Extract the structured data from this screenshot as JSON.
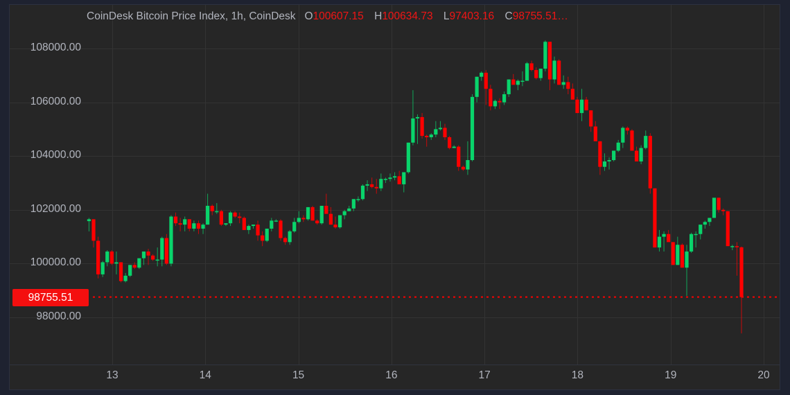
{
  "legend": {
    "title": "CoinDesk Bitcoin Price Index, 1h, CoinDesk",
    "open_key": "O",
    "open": "100607.15",
    "high_key": "H",
    "high": "100634.73",
    "low_key": "L",
    "low": "97403.16",
    "close_key": "C",
    "close": "98755.51…"
  },
  "last_price_tag": "98755.51",
  "colors": {
    "up": "#09d46b",
    "down": "#fe0000",
    "grid": "#333333",
    "text": "#b2b5be",
    "bg": "#262626",
    "outer": "#1e2230"
  },
  "chart_data": {
    "type": "candlestick",
    "title": "CoinDesk Bitcoin Price Index, 1h, CoinDesk",
    "interval": "1h",
    "xlabel": "",
    "ylabel": "",
    "y_ticks": [
      98000,
      100000,
      102000,
      104000,
      106000,
      108000
    ],
    "y_tick_labels": [
      "98000.00",
      "100000.00",
      "102000.00",
      "104000.00",
      "106000.00",
      "108000.00"
    ],
    "x_ticks": [
      "13",
      "14",
      "15",
      "16",
      "17",
      "18",
      "19",
      "20"
    ],
    "ylim": [
      96500,
      108700
    ],
    "grid": true,
    "last_close": 98755.51,
    "last_ohlc": {
      "open": 100607.15,
      "high": 100634.73,
      "low": 97403.16,
      "close": 98755.51
    },
    "start_day_offset": -0.25,
    "candles_ohlc": [
      [
        101580,
        101700,
        101200,
        101650
      ],
      [
        101650,
        101650,
        100600,
        100850
      ],
      [
        100850,
        101000,
        99450,
        99600
      ],
      [
        99600,
        100100,
        99500,
        100050
      ],
      [
        100050,
        100500,
        99900,
        100450
      ],
      [
        100450,
        100500,
        99950,
        100000
      ],
      [
        100000,
        100450,
        99600,
        100050
      ],
      [
        100050,
        100050,
        99300,
        99350
      ],
      [
        99350,
        99650,
        99300,
        99550
      ],
      [
        99550,
        99950,
        99500,
        99950
      ],
      [
        99950,
        100050,
        99800,
        99850
      ],
      [
        99850,
        100150,
        99800,
        100200
      ],
      [
        100200,
        100450,
        99950,
        100450
      ],
      [
        100450,
        100550,
        99950,
        100300
      ],
      [
        100300,
        100350,
        100100,
        100150
      ],
      [
        100150,
        100600,
        99900,
        100150
      ],
      [
        100150,
        101000,
        99900,
        100950
      ],
      [
        100950,
        101100,
        99950,
        100000
      ],
      [
        100000,
        101800,
        99900,
        101750
      ],
      [
        101750,
        101900,
        101400,
        101500
      ],
      [
        101500,
        101700,
        101200,
        101450
      ],
      [
        101450,
        101750,
        101200,
        101650
      ],
      [
        101650,
        101650,
        101200,
        101300
      ],
      [
        101300,
        101600,
        101200,
        101500
      ],
      [
        101500,
        101600,
        101100,
        101300
      ],
      [
        101300,
        101500,
        101100,
        101450
      ],
      [
        101450,
        102600,
        101450,
        102150
      ],
      [
        102150,
        102200,
        101800,
        101950
      ],
      [
        101950,
        102250,
        101850,
        101950
      ],
      [
        101950,
        102000,
        101400,
        101450
      ],
      [
        101450,
        101500,
        101400,
        101500
      ],
      [
        101500,
        101950,
        101400,
        101900
      ],
      [
        101900,
        101950,
        101700,
        101750
      ],
      [
        101750,
        101900,
        101500,
        101700
      ],
      [
        101700,
        101750,
        101250,
        101250
      ],
      [
        101250,
        101450,
        101100,
        101400
      ],
      [
        101400,
        101450,
        101300,
        101450
      ],
      [
        101450,
        101600,
        100850,
        101050
      ],
      [
        101050,
        101200,
        100650,
        100850
      ],
      [
        100850,
        101300,
        100800,
        101300
      ],
      [
        101300,
        101700,
        101200,
        101600
      ],
      [
        101600,
        101650,
        101550,
        101600
      ],
      [
        101600,
        101650,
        100850,
        100950
      ],
      [
        100950,
        101000,
        100700,
        100800
      ],
      [
        100800,
        101250,
        100700,
        101200
      ],
      [
        101200,
        101700,
        101150,
        101550
      ],
      [
        101550,
        101950,
        101500,
        101700
      ],
      [
        101700,
        101800,
        101550,
        101650
      ],
      [
        101650,
        102100,
        101600,
        102100
      ],
      [
        102100,
        102150,
        101600,
        101600
      ],
      [
        101600,
        101650,
        101450,
        101500
      ],
      [
        101500,
        102150,
        101450,
        102150
      ],
      [
        102150,
        102600,
        102000,
        101850
      ],
      [
        101850,
        102100,
        101450,
        101450
      ],
      [
        101450,
        101750,
        101300,
        101350
      ],
      [
        101350,
        101800,
        101300,
        101800
      ],
      [
        101800,
        102000,
        101650,
        101950
      ],
      [
        101950,
        102150,
        101950,
        102050
      ],
      [
        102050,
        102400,
        101950,
        102400
      ],
      [
        102400,
        102500,
        102300,
        102400
      ],
      [
        102400,
        102950,
        102350,
        102900
      ],
      [
        102900,
        103100,
        102700,
        102950
      ],
      [
        102950,
        103200,
        102800,
        102850
      ],
      [
        102850,
        103150,
        102600,
        102800
      ],
      [
        102800,
        103350,
        102700,
        103150
      ],
      [
        103150,
        103200,
        103000,
        103150
      ],
      [
        103150,
        103350,
        103050,
        103200
      ],
      [
        103200,
        103400,
        103100,
        103250
      ],
      [
        103250,
        103450,
        103000,
        102950
      ],
      [
        102950,
        103400,
        102650,
        103400
      ],
      [
        103400,
        104500,
        103350,
        104500
      ],
      [
        104500,
        106450,
        104400,
        105400
      ],
      [
        105400,
        105550,
        104450,
        105450
      ],
      [
        105450,
        105600,
        104650,
        104750
      ],
      [
        104750,
        104800,
        104350,
        104700
      ],
      [
        104700,
        104850,
        104600,
        104800
      ],
      [
        104800,
        105300,
        104700,
        105000
      ],
      [
        105000,
        105300,
        104950,
        105050
      ],
      [
        105050,
        105200,
        104600,
        104700
      ],
      [
        104700,
        104750,
        104250,
        104300
      ],
      [
        104300,
        104400,
        104300,
        104350
      ],
      [
        104350,
        104400,
        103450,
        103600
      ],
      [
        103600,
        103650,
        103450,
        103500
      ],
      [
        103500,
        104550,
        103300,
        103850
      ],
      [
        103850,
        106300,
        103800,
        106200
      ],
      [
        106200,
        106950,
        106000,
        106950
      ],
      [
        106950,
        107150,
        106800,
        107100
      ],
      [
        107100,
        107200,
        105900,
        106500
      ],
      [
        106500,
        106650,
        105700,
        105850
      ],
      [
        105850,
        106100,
        105750,
        106050
      ],
      [
        106050,
        106150,
        105750,
        106000
      ],
      [
        106000,
        106400,
        105900,
        106300
      ],
      [
        106300,
        106850,
        106200,
        106850
      ],
      [
        106850,
        107050,
        106650,
        106650
      ],
      [
        106650,
        106850,
        106450,
        106800
      ],
      [
        106800,
        107150,
        106600,
        106800
      ],
      [
        106800,
        107500,
        106800,
        107450
      ],
      [
        107450,
        107550,
        107150,
        107200
      ],
      [
        107200,
        107300,
        106850,
        106900
      ],
      [
        106900,
        107250,
        106800,
        107250
      ],
      [
        107250,
        108300,
        107150,
        108250
      ],
      [
        108250,
        108250,
        106450,
        106850
      ],
      [
        106850,
        107700,
        106700,
        107550
      ],
      [
        107550,
        107600,
        106800,
        106650
      ],
      [
        106650,
        107000,
        106500,
        106750
      ],
      [
        106750,
        106950,
        106300,
        106500
      ],
      [
        106500,
        106700,
        106350,
        106100
      ],
      [
        106100,
        106200,
        105600,
        105600
      ],
      [
        105600,
        106500,
        105300,
        106100
      ],
      [
        106100,
        106200,
        105700,
        105700
      ],
      [
        105700,
        105700,
        104900,
        105100
      ],
      [
        105100,
        105300,
        104650,
        104550
      ],
      [
        104550,
        104550,
        103300,
        103600
      ],
      [
        103600,
        104100,
        103450,
        103800
      ],
      [
        103800,
        103950,
        103500,
        103850
      ],
      [
        103850,
        104200,
        103800,
        104200
      ],
      [
        104200,
        104600,
        104150,
        104500
      ],
      [
        104500,
        105100,
        104300,
        105050
      ],
      [
        105050,
        105100,
        104800,
        104950
      ],
      [
        104950,
        105000,
        104200,
        104200
      ],
      [
        104200,
        104350,
        103800,
        103800
      ],
      [
        103800,
        104400,
        103700,
        104300
      ],
      [
        104300,
        104950,
        104250,
        104750
      ],
      [
        104750,
        104850,
        102600,
        102800
      ],
      [
        102800,
        102800,
        100600,
        100600
      ],
      [
        100600,
        101250,
        100450,
        101000
      ],
      [
        101000,
        101200,
        100450,
        101100
      ],
      [
        101100,
        101250,
        100950,
        100800
      ],
      [
        100800,
        100800,
        99950,
        99950
      ],
      [
        99950,
        101000,
        99950,
        100700
      ],
      [
        100700,
        100750,
        99950,
        99850
      ],
      [
        99850,
        100700,
        98800,
        100450
      ],
      [
        100450,
        101150,
        100400,
        101100
      ],
      [
        101100,
        101200,
        100600,
        101100
      ],
      [
        101100,
        101300,
        100900,
        101450
      ],
      [
        101450,
        101600,
        101300,
        101550
      ],
      [
        101550,
        101700,
        101400,
        101700
      ],
      [
        101700,
        102350,
        101700,
        102450
      ],
      [
        102450,
        102450,
        101900,
        102000
      ],
      [
        102000,
        102050,
        101800,
        101950
      ],
      [
        101950,
        101950,
        100850,
        100650
      ],
      [
        100650,
        100700,
        100500,
        100650
      ],
      [
        100650,
        100800,
        99550,
        100607.15
      ],
      [
        100607.15,
        100634.73,
        97403.16,
        98755.51
      ]
    ]
  }
}
